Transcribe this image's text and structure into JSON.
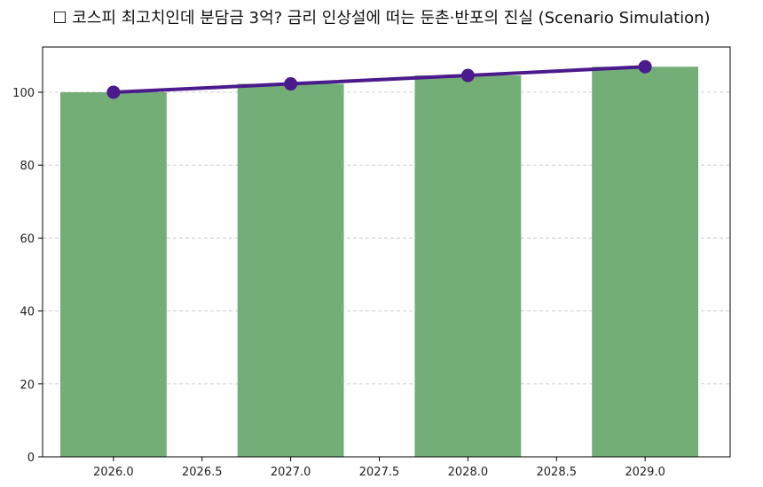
{
  "chart_data": {
    "type": "bar",
    "title": "☐ 코스피 최고치인데 분담금 3억? 금리 인상설에 떠는 둔촌·반포의 진실 (Scenario Simulation)",
    "xlabel": "",
    "ylabel": "",
    "xlim": [
      2025.6,
      2029.48
    ],
    "ylim": [
      0,
      112.4
    ],
    "x_ticks": [
      2026.0,
      2026.5,
      2027.0,
      2027.5,
      2028.0,
      2028.5,
      2029.0
    ],
    "x_tick_labels": [
      "2026.0",
      "2026.5",
      "2027.0",
      "2027.5",
      "2028.0",
      "2028.5",
      "2029.0"
    ],
    "y_ticks": [
      0,
      20,
      40,
      60,
      80,
      100
    ],
    "y_tick_labels": [
      "0",
      "20",
      "40",
      "60",
      "80",
      "100"
    ],
    "grid": "y-dashed",
    "legend": "none",
    "series": [
      {
        "kind": "bar",
        "x": [
          2026,
          2027,
          2028,
          2029
        ],
        "values": [
          100,
          102.3,
          104.6,
          107.0
        ],
        "color": "#73ae77"
      },
      {
        "kind": "line",
        "x": [
          2026,
          2027,
          2028,
          2029
        ],
        "values": [
          100,
          102.3,
          104.6,
          107.0
        ],
        "color": "#4b1a8c"
      }
    ]
  }
}
